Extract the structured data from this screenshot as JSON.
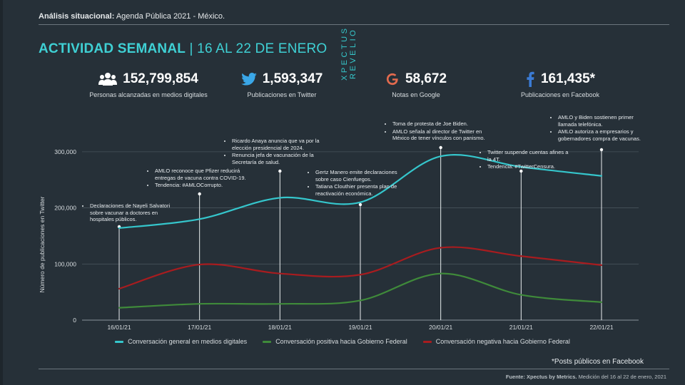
{
  "header": {
    "label": "Análisis situacional:",
    "text": "Agenda Pública 2021 - México.",
    "title": "ACTIVIDAD SEMANAL",
    "title_sep": " | ",
    "title_sub": "16 AL 22 DE ENERO",
    "vertical_brand": "XPECTUS REVELIO"
  },
  "stats": [
    {
      "icon": "people-icon",
      "value": "152,799,854",
      "label": "Personas alcanzadas en medios digitales"
    },
    {
      "icon": "twitter-icon",
      "value": "1,593,347",
      "label": "Publicaciones en Twitter"
    },
    {
      "icon": "google-icon",
      "value": "58,672",
      "label": "Notas en Google"
    },
    {
      "icon": "facebook-icon",
      "value": "161,435*",
      "label": "Publicaciones en Facebook"
    }
  ],
  "chart_data": {
    "type": "line",
    "x": [
      "16/01/21",
      "17/01/21",
      "18/01/21",
      "19/01/21",
      "20/01/21",
      "21/01/21",
      "22/01/21"
    ],
    "ylabel": "Número de publicaciones en Twitter",
    "yticks": [
      "0",
      "100,000",
      "200,000",
      "300,000"
    ],
    "ylim": [
      0,
      310000
    ],
    "grid": true,
    "legend": "bottom",
    "series": [
      {
        "name": "Conversación general en medios digitales",
        "color": "#35c6cc",
        "values": [
          164000,
          180000,
          218000,
          210000,
          292000,
          273000,
          257000
        ]
      },
      {
        "name": "Conversación positiva hacia Gobierno Federal",
        "color": "#3f8a3a",
        "values": [
          22000,
          29000,
          29000,
          35000,
          83000,
          45000,
          32000
        ]
      },
      {
        "name": "Conversación negativa hacia Gobierno Federal",
        "color": "#a81c1f",
        "values": [
          56000,
          99000,
          83000,
          81000,
          129000,
          114000,
          98000
        ]
      }
    ]
  },
  "annotations": [
    [
      "Declaraciones de Nayeli Salvatori sobre vacunar a doctores en hospitales públicos."
    ],
    [
      "AMLO reconoce que Pfizer reducirá entregas de vacuna contra COVID-19.",
      "Tendencia: #AMLOCorrupto."
    ],
    [
      "Ricardo Anaya anuncia que va por la elección presidencial de 2024.",
      "Renuncia jefa de vacunación de la Secretaría de salud."
    ],
    [
      "Gertz Manero emite declaraciones sobre caso Cienfuegos.",
      "Tatiana Clouthier presenta plan de reactivación económica."
    ],
    [
      "Toma de protesta de Joe Biden.",
      "AMLO señala al director de Twitter en México de tener vínculos con panismo."
    ],
    [
      "Twitter suspende cuentas afines a la 4T.",
      "Tendencia: #TwitterCensura."
    ],
    [
      "AMLO y Biden sostienen primer llamada telefónica.",
      "AMLO autoriza a empresarios y gobernadores compra de vacunas."
    ]
  ],
  "note": "*Posts públicos en Facebook",
  "footer": {
    "source_label": "Fuente: Xpectus by Metrics.",
    "source_text": "Medición del 16 al 22 de enero, 2021"
  }
}
